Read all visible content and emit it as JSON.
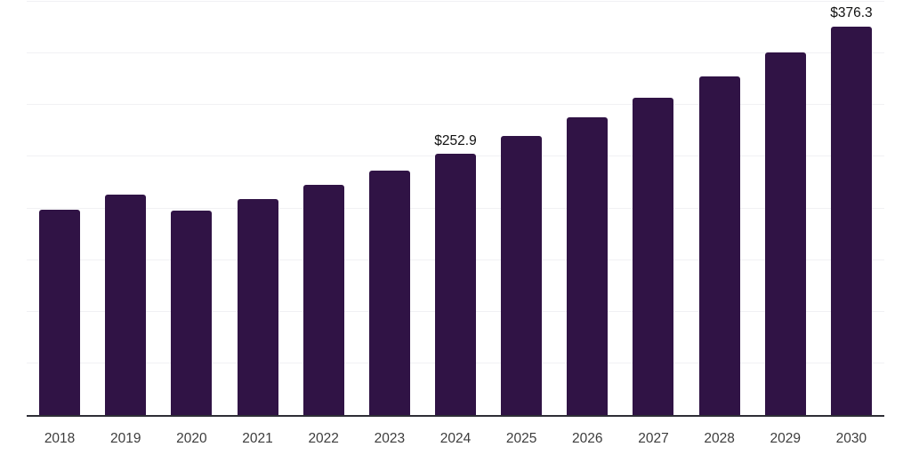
{
  "chart_data": {
    "type": "bar",
    "title": "",
    "xlabel": "",
    "ylabel": "",
    "categories": [
      "2018",
      "2019",
      "2020",
      "2021",
      "2022",
      "2023",
      "2024",
      "2025",
      "2026",
      "2027",
      "2028",
      "2029",
      "2030"
    ],
    "values": [
      199,
      213,
      198,
      209,
      223,
      237,
      252.9,
      270,
      288,
      307,
      328,
      351,
      376.3
    ],
    "labeled_points": [
      {
        "category": "2024",
        "label": "$252.9"
      },
      {
        "category": "2030",
        "label": "$376.3"
      }
    ],
    "ylim": [
      0,
      400
    ],
    "gridline_values": [
      50,
      100,
      150,
      200,
      250,
      300,
      350,
      400
    ],
    "grid": "horizontal-only",
    "y_tick_labels": "none",
    "legend": "none",
    "colors": {
      "bar": "#301345",
      "axis_line": "#2e2e36",
      "gridline": "#f1f1f4",
      "data_label": "#111111",
      "tick_label": "#3d3d3d",
      "background": "#ffffff"
    }
  }
}
